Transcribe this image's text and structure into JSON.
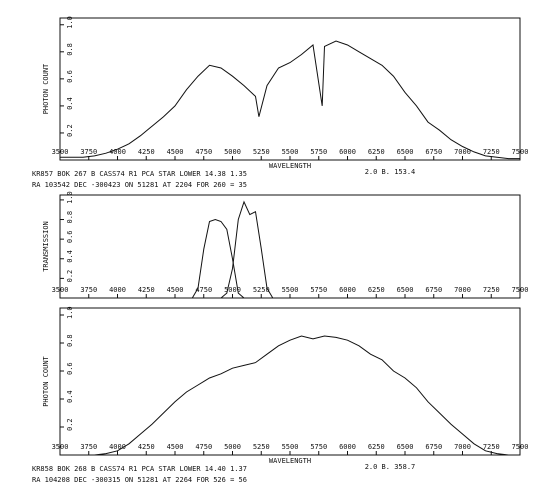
{
  "chart_data": [
    {
      "type": "line",
      "ylabel": "PHOTON COUNT",
      "xlabel": "WAVELENGTH",
      "xlabel_note": "2.0   B.   153.4",
      "caption": [
        "KR857   BOK 267 B    CASS74 R1 PCA   STAR   LOWER 14.38   1.35",
        "RA  103542 DEC -300423 ON   51281 AT   2204 FOR   260   =   35"
      ],
      "xlim": [
        3500,
        7500
      ],
      "xticks": [
        3500,
        3750,
        4000,
        4250,
        4500,
        4750,
        5000,
        5250,
        5500,
        5750,
        6000,
        6250,
        6500,
        6750,
        7000,
        7250,
        7500
      ],
      "ylim": [
        0,
        1.05
      ],
      "yticks": [
        0.2,
        0.4,
        0.6,
        0.8,
        {
          "value": 1,
          "label": "1.0"
        }
      ],
      "series": [
        {
          "color": "#111111",
          "x": [
            3500,
            3600,
            3700,
            3800,
            3900,
            4000,
            4100,
            4200,
            4300,
            4400,
            4500,
            4600,
            4700,
            4800,
            4900,
            5000,
            5100,
            5200,
            5230,
            5300,
            5400,
            5500,
            5600,
            5700,
            5780,
            5800,
            5900,
            6000,
            6100,
            6200,
            6300,
            6400,
            6500,
            6600,
            6700,
            6800,
            6900,
            7000,
            7100,
            7200,
            7300,
            7400,
            7500
          ],
          "values": [
            0.02,
            0.02,
            0.02,
            0.03,
            0.05,
            0.08,
            0.12,
            0.18,
            0.25,
            0.32,
            0.4,
            0.52,
            0.62,
            0.7,
            0.68,
            0.62,
            0.55,
            0.47,
            0.32,
            0.55,
            0.68,
            0.72,
            0.78,
            0.85,
            0.4,
            0.84,
            0.88,
            0.85,
            0.8,
            0.75,
            0.7,
            0.62,
            0.5,
            0.4,
            0.28,
            0.22,
            0.15,
            0.1,
            0.06,
            0.03,
            0.02,
            0.01,
            0.01
          ]
        }
      ]
    },
    {
      "type": "line",
      "ylabel": "TRANSMISSION",
      "xlim": [
        3500,
        7500
      ],
      "xticks": [
        3500,
        3750,
        4000,
        4250,
        4500,
        4750,
        5000,
        5250,
        5500,
        5750,
        6000,
        6250,
        6500,
        6750,
        7000,
        7250,
        7500
      ],
      "ylim": [
        0,
        1.05
      ],
      "yticks": [
        0.2,
        0.4,
        0.6,
        0.8,
        {
          "value": 1,
          "label": "1.0"
        }
      ],
      "series": [
        {
          "color": "#111111",
          "x": [
            4650,
            4700,
            4750,
            4800,
            4850,
            4900,
            4950,
            5000,
            5050,
            5100
          ],
          "values": [
            0,
            0.1,
            0.5,
            0.78,
            0.8,
            0.78,
            0.7,
            0.4,
            0.05,
            0
          ]
        },
        {
          "color": "#111111",
          "x": [
            4900,
            4950,
            5000,
            5050,
            5100,
            5150,
            5200,
            5250,
            5300,
            5350
          ],
          "values": [
            0,
            0.05,
            0.3,
            0.8,
            0.98,
            0.85,
            0.88,
            0.5,
            0.1,
            0
          ]
        }
      ]
    },
    {
      "type": "line",
      "ylabel": "PHOTON COUNT",
      "xlabel": "WAVELENGTH",
      "xlabel_note": "2.0   B.   358.7",
      "caption": [
        "KR858   BOK 268 B    CASS74 R1 PCA   STAR   LOWER 14.40  1.37",
        "RA  104208 DEC -300315 ON   51281 AT   2264 FOR   526   =   56"
      ],
      "xlim": [
        3500,
        7500
      ],
      "xticks": [
        3500,
        3750,
        4000,
        4250,
        4500,
        4750,
        5000,
        5250,
        5500,
        5750,
        6000,
        6250,
        6500,
        6750,
        7000,
        7250,
        7500
      ],
      "ylim": [
        0,
        1.05
      ],
      "yticks": [
        0.2,
        0.4,
        0.6,
        0.8,
        {
          "value": 1,
          "label": "1.0"
        }
      ],
      "series": [
        {
          "color": "#111111",
          "x": [
            3500,
            3600,
            3700,
            3800,
            3900,
            4000,
            4100,
            4200,
            4300,
            4400,
            4500,
            4600,
            4700,
            4800,
            4900,
            5000,
            5100,
            5200,
            5300,
            5400,
            5500,
            5600,
            5700,
            5800,
            5900,
            6000,
            6100,
            6200,
            6300,
            6400,
            6500,
            6600,
            6700,
            6800,
            6900,
            7000,
            7100,
            7200,
            7300,
            7400,
            7500
          ],
          "values": [
            0,
            0,
            0,
            0,
            0.01,
            0.03,
            0.08,
            0.15,
            0.22,
            0.3,
            0.38,
            0.45,
            0.5,
            0.55,
            0.58,
            0.62,
            0.64,
            0.66,
            0.72,
            0.78,
            0.82,
            0.85,
            0.83,
            0.85,
            0.84,
            0.82,
            0.78,
            0.72,
            0.68,
            0.6,
            0.55,
            0.48,
            0.38,
            0.3,
            0.22,
            0.15,
            0.08,
            0.03,
            0.01,
            0,
            0
          ]
        }
      ]
    }
  ]
}
